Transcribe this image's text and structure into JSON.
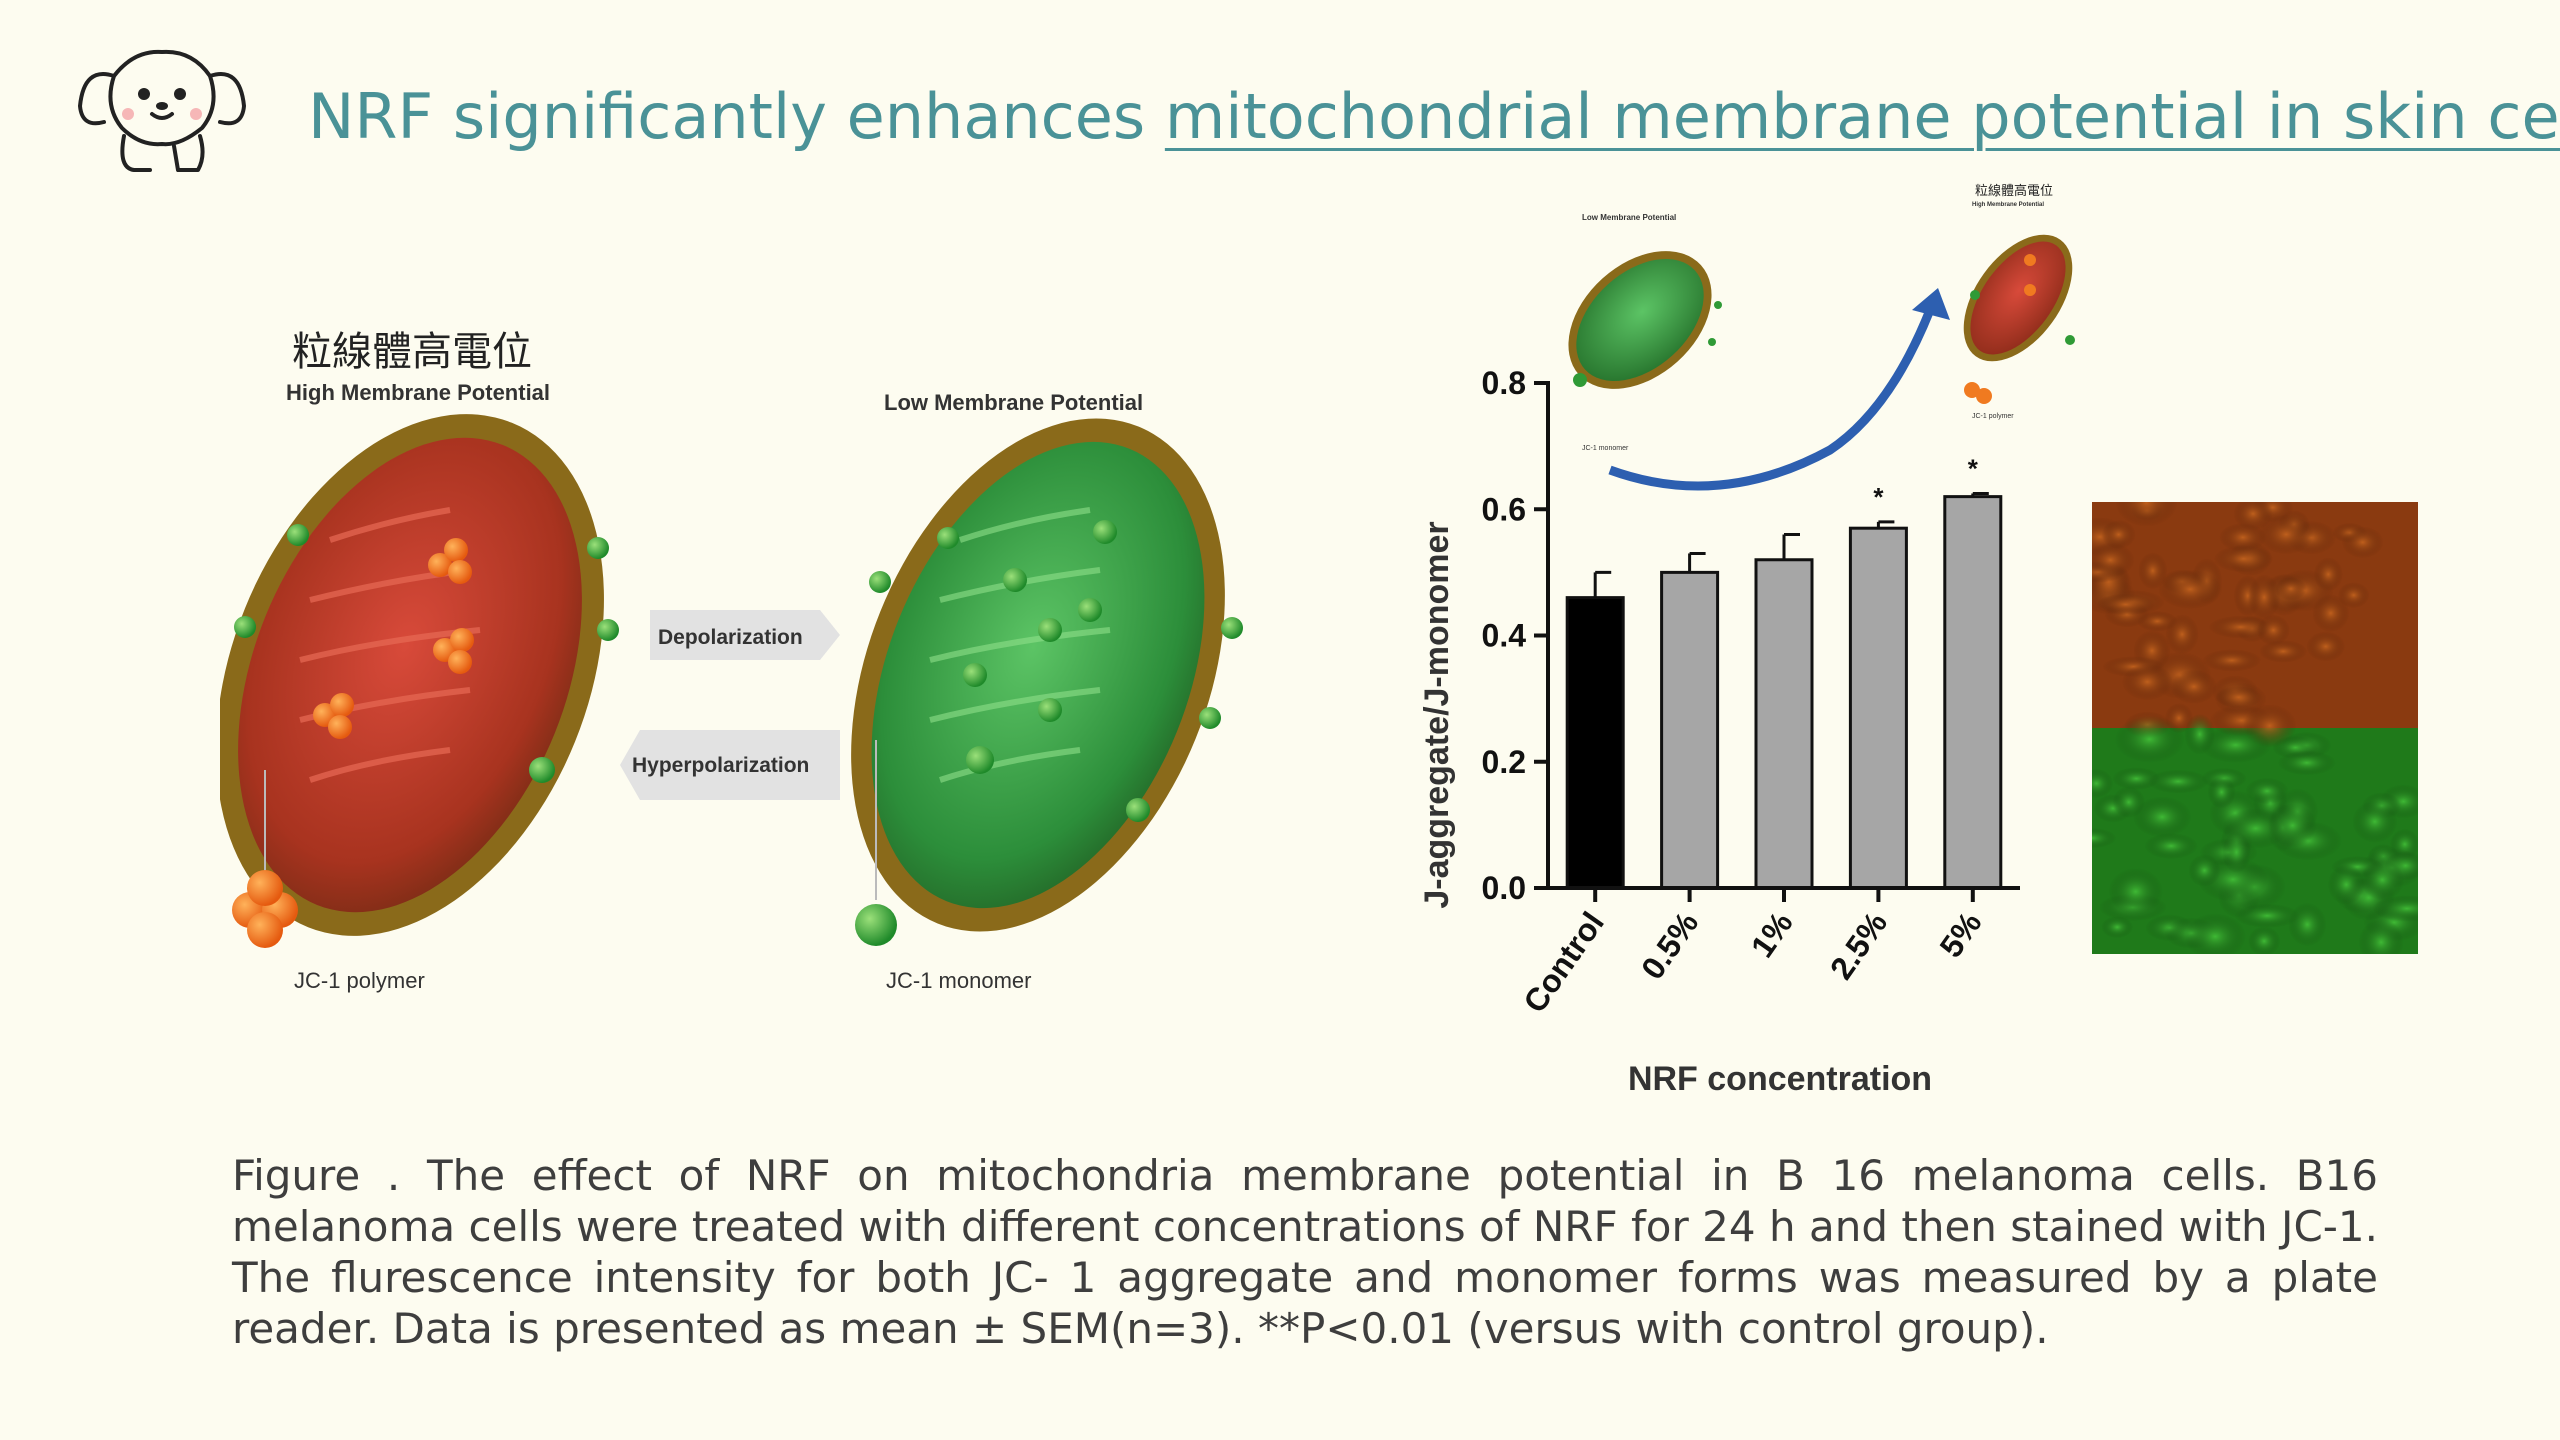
{
  "slide": {
    "title_plain": "NRF significantly enhances ",
    "title_underlined": "mitochondrial membrane potential in skin cells",
    "logo_icon": "puppy-logo-icon"
  },
  "diagram": {
    "high_cjk": "粒線體高電位",
    "high_label": "High Membrane Potential",
    "low_label": "Low Membrane Potential",
    "depolarization": "Depolarization",
    "hyperpolarization": "Hyperpolarization",
    "polymer_label": "JC-1 polymer",
    "monomer_label": "JC-1 monomer"
  },
  "inset": {
    "low_label": "Low Membrane Potential",
    "high_cjk": "粒線體高電位",
    "high_label": "High Membrane Potential",
    "monomer_label": "JC-1 monomer",
    "polymer_label": "JC-1 polymer"
  },
  "chart_data": {
    "type": "bar",
    "categories": [
      "Control",
      "0.5%",
      "1%",
      "2.5%",
      "5%"
    ],
    "values": [
      0.46,
      0.5,
      0.52,
      0.57,
      0.62
    ],
    "errors": [
      0.04,
      0.03,
      0.04,
      0.01,
      0.005
    ],
    "significance": [
      "",
      "",
      "",
      "*",
      "*"
    ],
    "bar_colors": [
      "#000000",
      "#a6a6a6",
      "#a6a6a6",
      "#a6a6a6",
      "#a6a6a6"
    ],
    "xlabel": "NRF concentration",
    "ylabel": "J-aggregate/J-monomer",
    "ylim": [
      0,
      0.8
    ],
    "yticks": [
      "0.0",
      "0.2",
      "0.4",
      "0.6",
      "0.8"
    ],
    "grid": false
  },
  "micrograph": {
    "top_stain_color": "#8a3a10",
    "bottom_stain_color": "#1f7a1a"
  },
  "caption": "Figure . The effect of NRF on mitochondria membrane potential in B 16 melanoma cells. B16 melanoma cells were treated with different concentrations of NRF for 24 h and then stained with JC-1. The flurescence intensity for both JC- 1 aggregate and monomer forms was measured by a plate reader. Data is presented as mean ± SEM(n=3).  **P<0.01 (versus with control group)."
}
